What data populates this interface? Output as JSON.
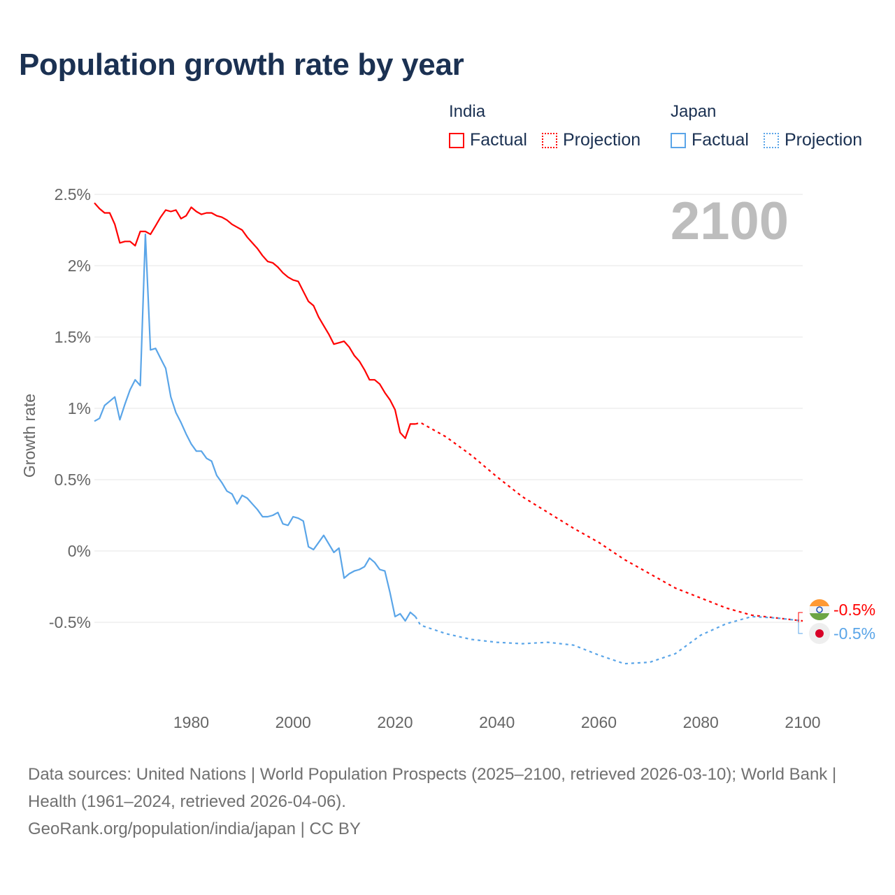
{
  "title": "Population growth rate by year",
  "legend": {
    "groups": [
      {
        "name": "India",
        "color": "#ff0000",
        "items": [
          "Factual",
          "Projection"
        ]
      },
      {
        "name": "Japan",
        "color": "#5aa5e8",
        "items": [
          "Factual",
          "Projection"
        ]
      }
    ]
  },
  "year_overlay": "2100",
  "end_labels": {
    "india": "-0.5%",
    "japan": "-0.5%"
  },
  "footer": {
    "sources": "Data sources: United Nations | World Population Prospects (2025–2100, retrieved 2026-03-10); World Bank | Health (1961–2024, retrieved 2026-04-06).",
    "credit": "GeoRank.org/population/india/japan | CC BY"
  },
  "chart_data": {
    "type": "line",
    "title": "Population growth rate by year",
    "xlabel": "",
    "ylabel": "Growth rate",
    "xlim": [
      1961,
      2100
    ],
    "ylim": [
      -1.0,
      2.6
    ],
    "x_ticks": [
      1980,
      2000,
      2020,
      2040,
      2060,
      2080,
      2100
    ],
    "x_tick_labels": [
      "1980",
      "2000",
      "2020",
      "2040",
      "2060",
      "2080",
      "2100"
    ],
    "y_ticks": [
      -0.5,
      0,
      0.5,
      1,
      1.5,
      2,
      2.5
    ],
    "y_tick_labels": [
      "-0.5%",
      "0%",
      "0.5%",
      "1%",
      "1.5%",
      "2%",
      "2.5%"
    ],
    "grid": true,
    "legend_position": "top-right",
    "series": [
      {
        "name": "India Factual",
        "color": "#ff0000",
        "dashed": false,
        "start": 1961,
        "values": [
          2.44,
          2.4,
          2.37,
          2.37,
          2.29,
          2.16,
          2.17,
          2.17,
          2.14,
          2.24,
          2.24,
          2.22,
          2.28,
          2.34,
          2.39,
          2.38,
          2.39,
          2.33,
          2.35,
          2.41,
          2.38,
          2.36,
          2.37,
          2.37,
          2.35,
          2.34,
          2.32,
          2.29,
          2.27,
          2.25,
          2.2,
          2.16,
          2.12,
          2.07,
          2.03,
          2.02,
          1.99,
          1.95,
          1.92,
          1.9,
          1.89,
          1.82,
          1.75,
          1.72,
          1.64,
          1.58,
          1.52,
          1.45,
          1.46,
          1.47,
          1.43,
          1.37,
          1.33,
          1.27,
          1.2,
          1.2,
          1.17,
          1.11,
          1.06,
          0.99,
          0.83,
          0.79,
          0.89,
          0.89
        ]
      },
      {
        "name": "India Projection",
        "color": "#ff0000",
        "dashed": true,
        "x": [
          2024,
          2025,
          2030,
          2035,
          2040,
          2045,
          2050,
          2055,
          2060,
          2065,
          2070,
          2075,
          2080,
          2085,
          2090,
          2095,
          2100
        ],
        "values": [
          0.89,
          0.9,
          0.8,
          0.67,
          0.52,
          0.38,
          0.27,
          0.16,
          0.06,
          -0.06,
          -0.16,
          -0.26,
          -0.33,
          -0.4,
          -0.45,
          -0.47,
          -0.49
        ]
      },
      {
        "name": "Japan Factual",
        "color": "#5aa5e8",
        "dashed": false,
        "start": 1961,
        "values": [
          0.91,
          0.93,
          1.02,
          1.05,
          1.08,
          0.92,
          1.03,
          1.13,
          1.2,
          1.16,
          2.22,
          1.41,
          1.42,
          1.35,
          1.28,
          1.08,
          0.97,
          0.9,
          0.82,
          0.75,
          0.7,
          0.7,
          0.65,
          0.63,
          0.53,
          0.48,
          0.42,
          0.4,
          0.33,
          0.39,
          0.37,
          0.33,
          0.29,
          0.24,
          0.24,
          0.25,
          0.27,
          0.19,
          0.18,
          0.24,
          0.23,
          0.21,
          0.03,
          0.01,
          0.06,
          0.11,
          0.05,
          -0.01,
          0.02,
          -0.19,
          -0.16,
          -0.14,
          -0.13,
          -0.11,
          -0.05,
          -0.08,
          -0.13,
          -0.14,
          -0.29,
          -0.46,
          -0.44,
          -0.49,
          -0.43,
          -0.46
        ]
      },
      {
        "name": "Japan Projection",
        "color": "#5aa5e8",
        "dashed": true,
        "x": [
          2024,
          2025,
          2030,
          2035,
          2040,
          2045,
          2050,
          2055,
          2060,
          2065,
          2070,
          2075,
          2080,
          2085,
          2090,
          2095,
          2100
        ],
        "values": [
          -0.46,
          -0.52,
          -0.58,
          -0.62,
          -0.64,
          -0.65,
          -0.64,
          -0.66,
          -0.73,
          -0.79,
          -0.78,
          -0.72,
          -0.59,
          -0.51,
          -0.46,
          -0.47,
          -0.49
        ]
      }
    ]
  }
}
